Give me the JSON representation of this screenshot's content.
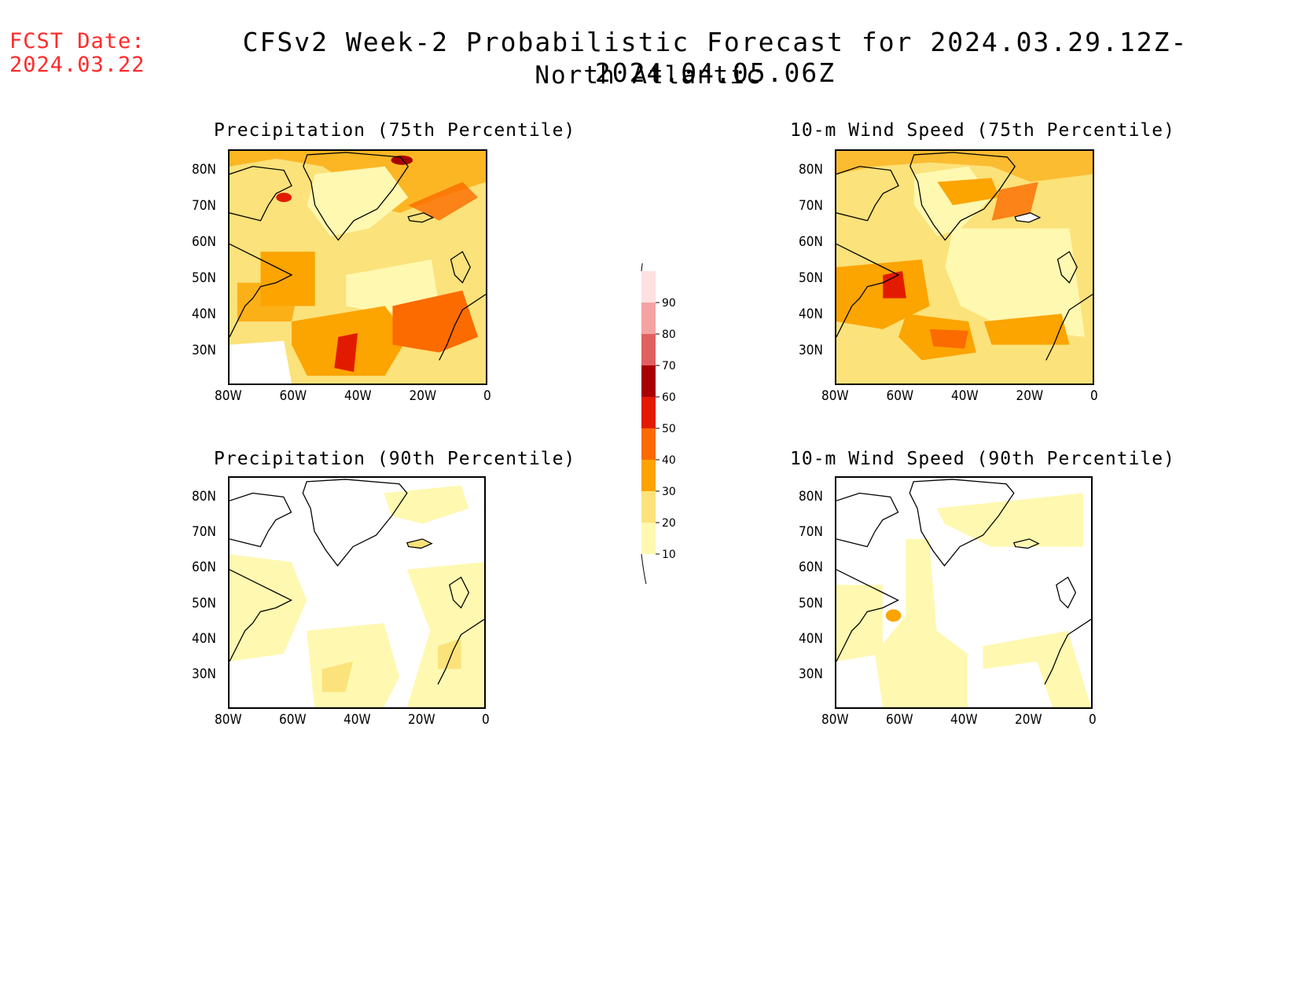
{
  "header": {
    "fcst_label": "FCST Date:",
    "fcst_date": "2024.03.22",
    "title": "CFSv2 Week-2 Probabilistic Forecast for 2024.03.29.12Z-2024.04.05.06Z",
    "region": "North Atlantic"
  },
  "panels": [
    {
      "title": "Precipitation (75th Percentile)"
    },
    {
      "title": "10-m Wind Speed (75th Percentile)"
    },
    {
      "title": "Precipitation (90th Percentile)"
    },
    {
      "title": "10-m Wind Speed (90th Percentile)"
    }
  ],
  "axes": {
    "lat_labels": [
      "80N",
      "70N",
      "60N",
      "50N",
      "40N",
      "30N"
    ],
    "lon_labels": [
      "80W",
      "60W",
      "40W",
      "20W",
      "0"
    ]
  },
  "colorbar": {
    "levels": [
      "10",
      "20",
      "30",
      "40",
      "50",
      "60",
      "70",
      "80",
      "90"
    ],
    "colors": [
      "#fff8b0",
      "#fbe27a",
      "#fca400",
      "#fb6b00",
      "#e21b00",
      "#a80000",
      "#e06060",
      "#f4a3a3",
      "#fde0e0"
    ]
  },
  "colors": {
    "fcst_date": "#ff2b2b",
    "c10": "#fff8b0",
    "c20": "#fbe27a",
    "c30": "#fca400",
    "c40": "#fb6b00",
    "c50": "#e21b00"
  }
}
